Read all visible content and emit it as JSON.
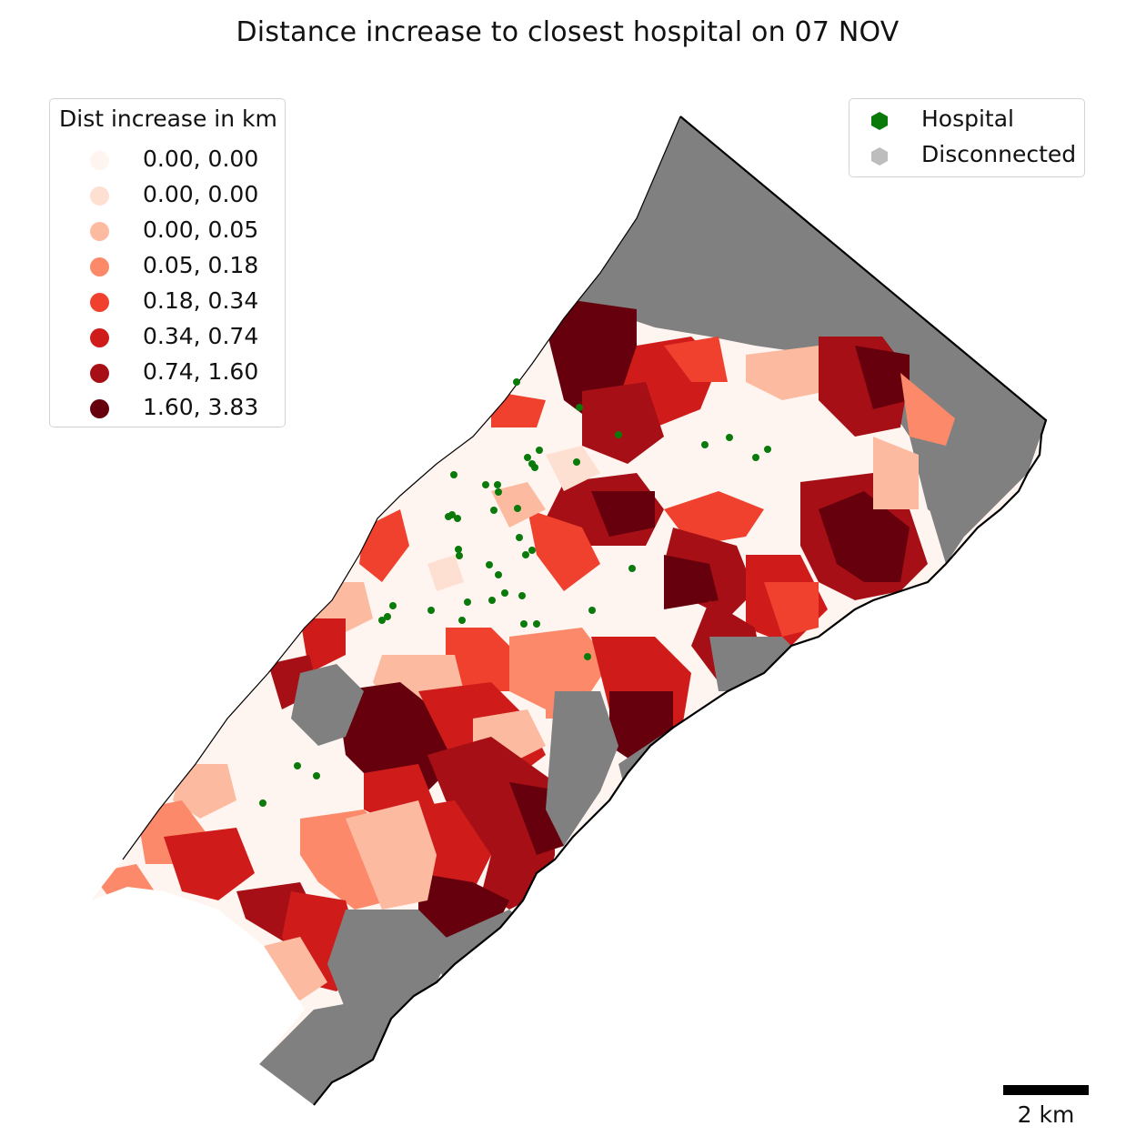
{
  "title": "Distance increase to closest hospital on 07 NOV",
  "legend_distance": {
    "title": "Dist increase in km",
    "items": [
      {
        "label": "0.00, 0.00",
        "color": "#fff5f0"
      },
      {
        "label": "0.00, 0.00",
        "color": "#fee0d2"
      },
      {
        "label": "0.00, 0.05",
        "color": "#fcbba1"
      },
      {
        "label": "0.05, 0.18",
        "color": "#fc8a6a"
      },
      {
        "label": "0.18, 0.34",
        "color": "#f0402e"
      },
      {
        "label": "0.34, 0.74",
        "color": "#d01b1b"
      },
      {
        "label": "0.74, 1.60",
        "color": "#a50f15"
      },
      {
        "label": "1.60, 3.83",
        "color": "#67000d"
      }
    ]
  },
  "legend_points": {
    "items": [
      {
        "label": "Hospital",
        "color": "#0a7a0a"
      },
      {
        "label": "Disconnected",
        "color": "#bdbdbd"
      }
    ]
  },
  "scalebar": {
    "label": "2 km"
  },
  "colors": {
    "disconnected_fill": "#808080",
    "hospital": "#0a7a0a",
    "outline": "#000000"
  }
}
